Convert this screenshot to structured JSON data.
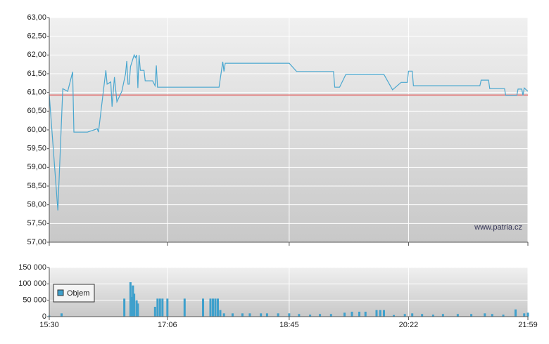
{
  "chart_data": [
    {
      "type": "line",
      "color": "#4aa7cf",
      "watermark": "www.patria.cz",
      "reference_line": {
        "value": 60.93,
        "color": "#e06060"
      },
      "x": [
        "15:30",
        "15:37",
        "15:41",
        "15:45",
        "15:49",
        "15:50",
        "16:01",
        "16:09",
        "16:10",
        "16:16",
        "16:17",
        "16:20",
        "16:21",
        "16:23",
        "16:25",
        "16:29",
        "16:32",
        "16:33",
        "16:34",
        "16:35",
        "16:36",
        "16:39",
        "16:40",
        "16:41",
        "16:42",
        "16:43",
        "16:44",
        "16:47",
        "16:48",
        "16:54",
        "16:56",
        "16:57",
        "16:58",
        "17:48",
        "17:51",
        "17:52",
        "17:53",
        "18:45",
        "18:51",
        "19:21",
        "19:22",
        "19:26",
        "19:31",
        "20:02",
        "20:09",
        "20:16",
        "20:21",
        "20:22",
        "20:25",
        "20:26",
        "21:20",
        "21:21",
        "21:27",
        "21:28",
        "21:40",
        "21:41",
        "21:50",
        "21:51",
        "21:54",
        "21:55",
        "21:56",
        "21:59"
      ],
      "values": [
        60.94,
        57.85,
        61.1,
        61.03,
        61.55,
        59.94,
        59.94,
        60.03,
        59.94,
        61.59,
        61.22,
        61.28,
        60.62,
        61.41,
        60.75,
        61.03,
        61.5,
        61.84,
        61.22,
        61.22,
        61.69,
        62.0,
        61.93,
        62.0,
        61.12,
        62.0,
        61.59,
        61.59,
        61.31,
        61.31,
        61.18,
        61.72,
        61.14,
        61.14,
        61.82,
        61.56,
        61.78,
        61.78,
        61.56,
        61.56,
        61.14,
        61.14,
        61.48,
        61.48,
        61.07,
        61.27,
        61.27,
        61.57,
        61.57,
        61.18,
        61.18,
        61.33,
        61.33,
        61.1,
        61.1,
        60.92,
        60.92,
        61.09,
        61.09,
        60.92,
        61.12,
        61.03
      ],
      "xlim": [
        "15:30",
        "21:59"
      ],
      "ylim": [
        57,
        63
      ],
      "yticks": [
        {
          "value": 57,
          "label": "57,00"
        },
        {
          "value": 57.5,
          "label": "57,50"
        },
        {
          "value": 58,
          "label": "58,00"
        },
        {
          "value": 58.5,
          "label": "58,50"
        },
        {
          "value": 59,
          "label": "59,00"
        },
        {
          "value": 59.5,
          "label": "59,50"
        },
        {
          "value": 60,
          "label": "60,00"
        },
        {
          "value": 60.5,
          "label": "60,50"
        },
        {
          "value": 61,
          "label": "61,00"
        },
        {
          "value": 61.5,
          "label": "61,50"
        },
        {
          "value": 62,
          "label": "62,00"
        },
        {
          "value": 62.5,
          "label": "62,50"
        },
        {
          "value": 63,
          "label": "63,00"
        }
      ],
      "grid": true
    },
    {
      "type": "bar",
      "x": [
        "15:30",
        "15:40",
        "16:31",
        "16:36",
        "16:37",
        "16:38",
        "16:39",
        "16:41",
        "16:42",
        "16:56",
        "16:58",
        "17:00",
        "17:02",
        "17:06",
        "17:20",
        "17:35",
        "17:41",
        "17:43",
        "17:45",
        "17:47",
        "17:49",
        "17:52",
        "17:59",
        "18:07",
        "18:13",
        "18:22",
        "18:27",
        "18:36",
        "18:45",
        "18:53",
        "19:02",
        "19:10",
        "19:19",
        "19:30",
        "19:36",
        "19:42",
        "19:47",
        "19:56",
        "19:59",
        "20:02",
        "20:10",
        "20:19",
        "20:25",
        "20:33",
        "20:42",
        "20:50",
        "21:02",
        "21:13",
        "21:24",
        "21:30",
        "21:39",
        "21:49",
        "21:56",
        "21:59"
      ],
      "series": [
        {
          "name": "Objem",
          "color": "#3ea0cc",
          "values": [
            3000,
            10000,
            55000,
            105000,
            60000,
            95000,
            70000,
            50000,
            40000,
            30000,
            55000,
            55000,
            55000,
            55000,
            55000,
            55000,
            55000,
            55000,
            55000,
            55000,
            20000,
            10000,
            10000,
            10000,
            10000,
            10000,
            10000,
            10000,
            10000,
            8000,
            6000,
            8000,
            8000,
            12000,
            15000,
            15000,
            15000,
            20000,
            20000,
            20000,
            5000,
            8000,
            10000,
            8000,
            6000,
            8000,
            8000,
            8000,
            10000,
            8000,
            6000,
            22000,
            10000,
            12000
          ]
        }
      ],
      "xlim": [
        "15:30",
        "21:59"
      ],
      "xticks": [
        "15:30",
        "17:06",
        "18:45",
        "20:22",
        "21:59"
      ],
      "ylim": [
        0,
        150000
      ],
      "yticks": [
        0,
        {
          "value": 50000,
          "label": "50 000"
        },
        {
          "value": 100000,
          "label": "100 000"
        },
        {
          "value": 150000,
          "label": "150 000"
        }
      ],
      "grid": true
    }
  ]
}
